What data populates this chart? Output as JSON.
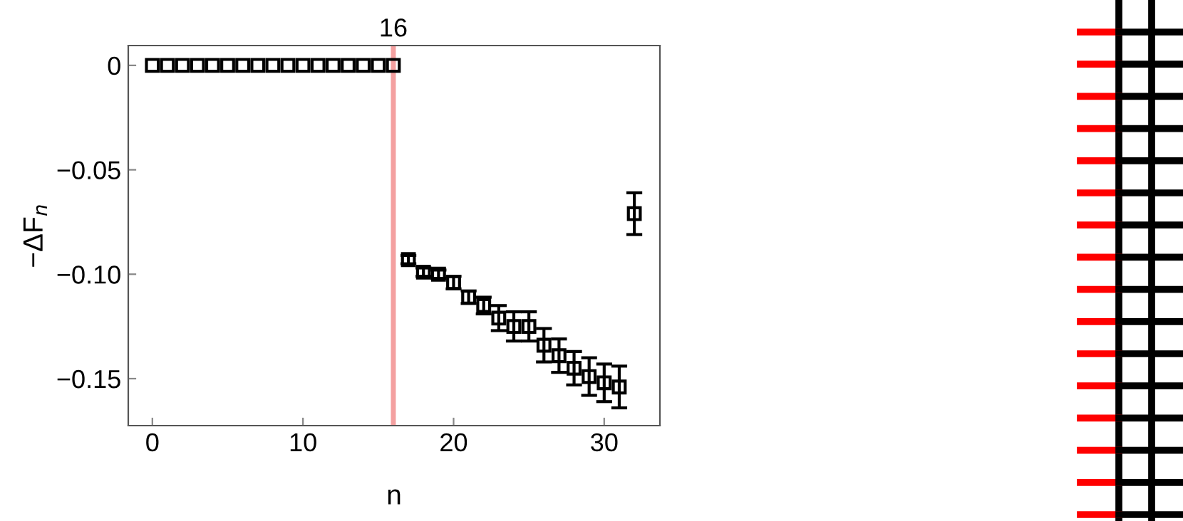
{
  "chart_data": {
    "type": "scatter",
    "xlabel": "n",
    "ylabel": "−ΔF$_{n}$",
    "x": [
      0,
      1,
      2,
      3,
      4,
      5,
      6,
      7,
      8,
      9,
      10,
      11,
      12,
      13,
      14,
      15,
      16,
      17,
      18,
      19,
      20,
      21,
      22,
      23,
      24,
      25,
      26,
      27,
      28,
      29,
      30,
      31,
      32
    ],
    "series": [
      {
        "color": "#000000",
        "values": [
          0,
          0,
          0,
          0,
          0,
          0,
          0,
          0,
          0,
          0,
          0,
          0,
          0,
          0,
          0,
          0,
          0,
          -0.093,
          -0.099,
          -0.1,
          -0.104,
          -0.111,
          -0.115,
          -0.121,
          -0.125,
          -0.125,
          -0.134,
          -0.139,
          -0.145,
          -0.149,
          -0.152,
          -0.154,
          -0.071
        ],
        "errors": [
          null,
          null,
          null,
          null,
          null,
          null,
          null,
          null,
          null,
          null,
          null,
          null,
          null,
          null,
          null,
          null,
          null,
          0.002,
          0.002,
          0.002,
          0.003,
          0.003,
          0.004,
          0.006,
          0.007,
          0.007,
          0.008,
          0.008,
          0.008,
          0.009,
          0.009,
          0.01,
          0.01
        ]
      }
    ],
    "marker": "square",
    "xlim": [
      -1.6,
      33.7
    ],
    "xticks": [
      0,
      10,
      20,
      30
    ],
    "ylim": [
      -0.1725,
      0.0095
    ],
    "yticks": [
      0,
      {
        "value": -0.05,
        "label": "−0.05"
      },
      {
        "value": -0.1,
        "label": "−0.10"
      },
      {
        "value": -0.15,
        "label": "−0.15"
      }
    ],
    "ref_lines": [
      {
        "axis": "x",
        "value": 16,
        "label": "16",
        "color": "#f4a0a0"
      }
    ],
    "grid": false
  }
}
